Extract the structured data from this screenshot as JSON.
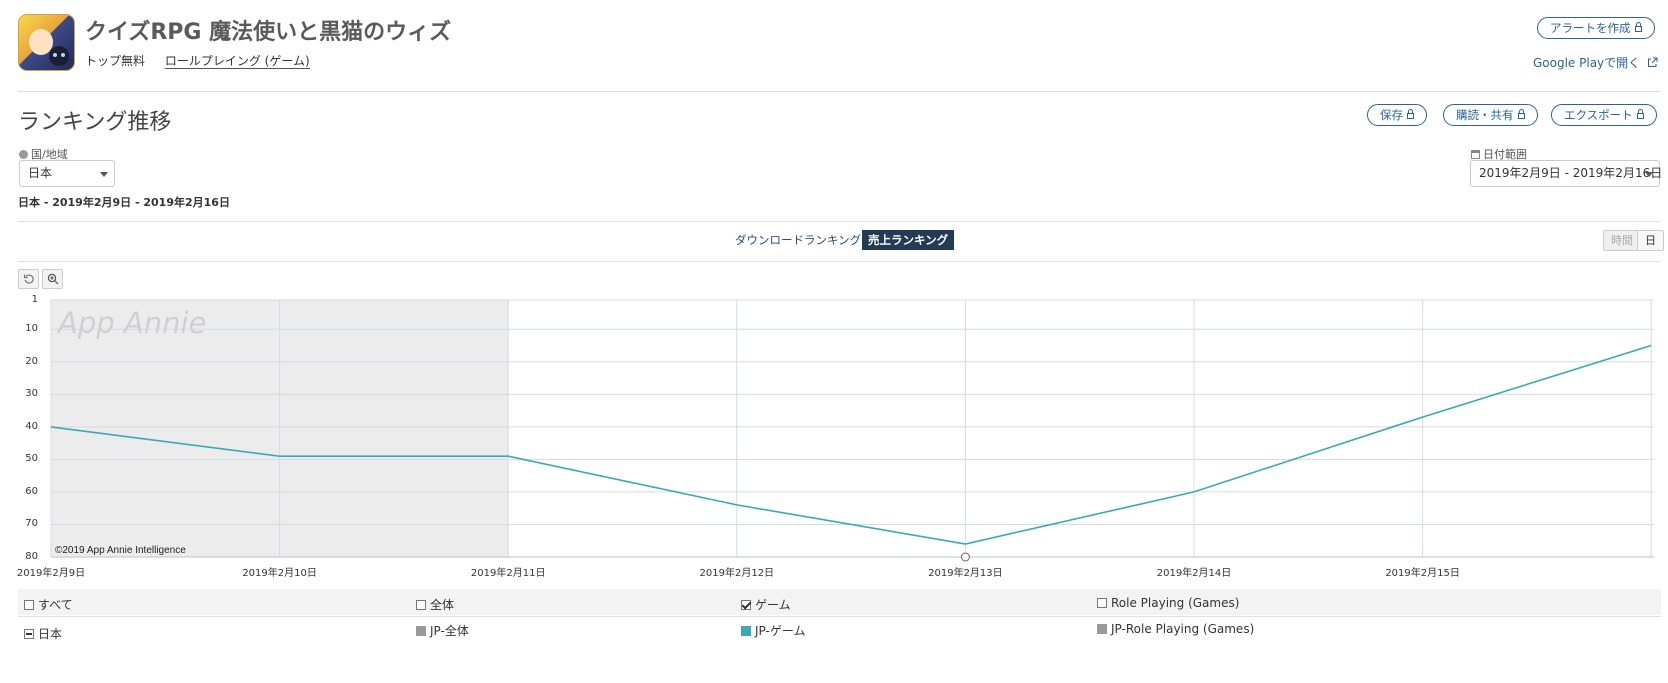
{
  "app": {
    "title": "クイズRPG 魔法使いと黒猫のウィズ",
    "rank_type": "トップ無料",
    "category": "ロールプレイング (ゲーム)",
    "open_link": "Google Playで開く",
    "alert_button": "アラートを作成"
  },
  "section": {
    "title": "ランキング推移",
    "save_button": "保存",
    "subscribe_button": "購読・共有",
    "export_button": "エクスポート"
  },
  "filters": {
    "country_label": "国/地域",
    "country_value": "日本",
    "date_label": "日付範囲",
    "date_value": "2019年2月9日 - 2019年2月16日",
    "summary": "日本 - 2019年2月9日 - 2019年2月16日"
  },
  "tabs": {
    "download": "ダウンロードランキング",
    "revenue": "売上ランキング",
    "active": "revenue"
  },
  "granularity": {
    "hour": "時間",
    "day": "日",
    "active": "day"
  },
  "watermark": "App Annie",
  "copyright": "©2019 App Annie Intelligence",
  "chart_data": {
    "type": "line",
    "y_axis": {
      "ticks": [
        1,
        10,
        20,
        30,
        40,
        50,
        60,
        70,
        80
      ],
      "inverted": true,
      "range": [
        1,
        80
      ]
    },
    "x": [
      "2019年2月9日",
      "2019年2月10日",
      "2019年2月11日",
      "2019年2月12日",
      "2019年2月13日",
      "2019年2月14日",
      "2019年2月15日",
      "2019年2月16日"
    ],
    "x_tick_labels": [
      "2019年2月9日",
      "2019年2月10日",
      "2019年2月11日",
      "2019年2月12日",
      "2019年2月13日",
      "2019年2月14日",
      "2019年2月15日"
    ],
    "series": [
      {
        "name": "JP-ゲーム",
        "color": "#3aa9b4",
        "values": [
          40,
          49,
          49,
          64,
          76,
          60,
          37,
          15
        ]
      }
    ],
    "shaded_range": [
      "2019年2月9日",
      "2019年2月11日"
    ],
    "grid": true
  },
  "legend": {
    "headers": [
      {
        "label": "すべて",
        "checked": false
      },
      {
        "label": "全体",
        "checked": false
      },
      {
        "label": "ゲーム",
        "checked": true
      },
      {
        "label": "Role Playing (Games)",
        "checked": false
      }
    ],
    "row_label": "日本",
    "items": [
      {
        "label": "JP-全体",
        "color": "#999999"
      },
      {
        "label": "JP-ゲーム",
        "color": "#3aa9b4"
      },
      {
        "label": "JP-Role Playing (Games)",
        "color": "#999999"
      }
    ]
  }
}
